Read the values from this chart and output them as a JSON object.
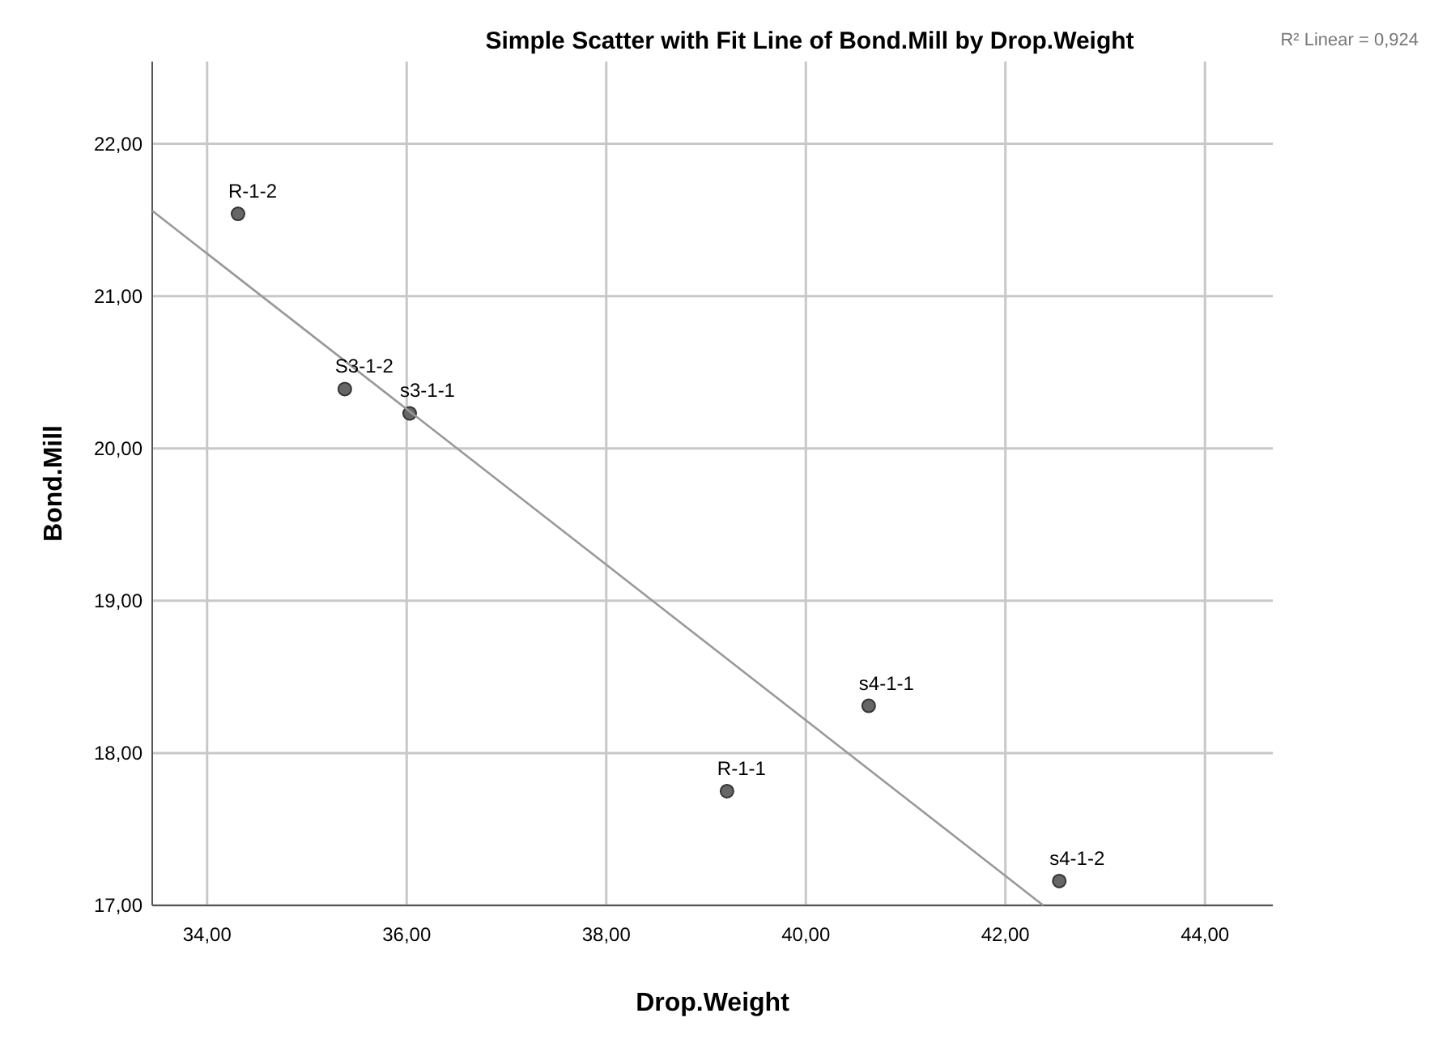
{
  "chart_data": {
    "type": "scatter",
    "title": "Simple Scatter with Fit Line of Bond.Mill by Drop.Weight",
    "xlabel": "Drop.Weight",
    "ylabel": "Bond.Mill",
    "xlim": [
      33.45,
      44.68
    ],
    "ylim": [
      17,
      22.54
    ],
    "xticks": [
      {
        "value": 34,
        "label": "34,00"
      },
      {
        "value": 36,
        "label": "36,00"
      },
      {
        "value": 38,
        "label": "38,00"
      },
      {
        "value": 40,
        "label": "40,00"
      },
      {
        "value": 42,
        "label": "42,00"
      },
      {
        "value": 44,
        "label": "44,00"
      }
    ],
    "yticks": [
      {
        "value": 17,
        "label": "17,00"
      },
      {
        "value": 18,
        "label": "18,00"
      },
      {
        "value": 19,
        "label": "19,00"
      },
      {
        "value": 20,
        "label": "20,00"
      },
      {
        "value": 21,
        "label": "21,00"
      },
      {
        "value": 22,
        "label": "22,00"
      }
    ],
    "grid": true,
    "series": [
      {
        "marker": "circle",
        "color": "#666666",
        "x": [
          34.31,
          35.38,
          36.03,
          39.21,
          40.63,
          42.54
        ],
        "values": [
          21.54,
          20.39,
          20.23,
          17.75,
          18.31,
          17.16
        ]
      },
      {
        "type": "line",
        "color": "#999999",
        "x": [
          33.45,
          42.38
        ],
        "values": [
          21.56,
          17.0
        ]
      }
    ],
    "annotations": [
      {
        "text": "R-1-2",
        "x": 34.31,
        "y": 21.54
      },
      {
        "text": "S3-1-2",
        "x": 35.38,
        "y": 20.39
      },
      {
        "text": "s3-1-1",
        "x": 36.03,
        "y": 20.23
      },
      {
        "text": "R-1-1",
        "x": 39.21,
        "y": 17.75
      },
      {
        "text": "s4-1-1",
        "x": 40.63,
        "y": 18.31
      },
      {
        "text": "s4-1-2",
        "x": 42.54,
        "y": 17.16
      },
      "R² Linear = 0,924"
    ]
  }
}
